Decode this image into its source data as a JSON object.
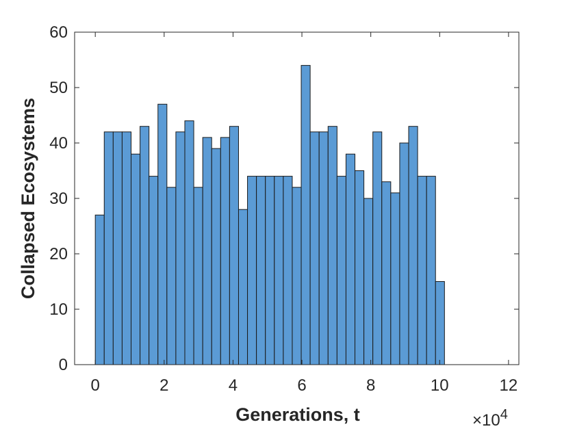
{
  "chart_data": {
    "type": "bar",
    "subtype": "histogram",
    "title": "",
    "xlabel": "Generations, t",
    "ylabel": "Collapsed Ecosystems",
    "x_exponent_label": "×10",
    "x_exponent_power": "4",
    "xlim": [
      -0.6,
      12.3
    ],
    "ylim": [
      0,
      60
    ],
    "x_ticks": [
      0,
      2,
      4,
      6,
      8,
      10,
      12
    ],
    "y_ticks": [
      0,
      10,
      20,
      30,
      40,
      50,
      60
    ],
    "x_tick_labels": [
      "0",
      "2",
      "4",
      "6",
      "8",
      "10",
      "12"
    ],
    "y_tick_labels": [
      "0",
      "10",
      "20",
      "30",
      "40",
      "50",
      "60"
    ],
    "bin_start": 0,
    "bin_width": 0.26,
    "values": [
      27,
      42,
      42,
      42,
      38,
      43,
      34,
      47,
      32,
      42,
      44,
      32,
      41,
      39,
      41,
      43,
      28,
      34,
      34,
      34,
      34,
      34,
      32,
      54,
      42,
      42,
      43,
      34,
      38,
      35,
      30,
      42,
      33,
      31,
      40,
      43,
      34,
      34,
      15
    ],
    "grid": false,
    "legend": "none",
    "colors": {
      "bar_fill": "#5B9BD5",
      "bar_edge": "#1a1a1a",
      "axis": "#262626",
      "background": "#ffffff"
    }
  }
}
